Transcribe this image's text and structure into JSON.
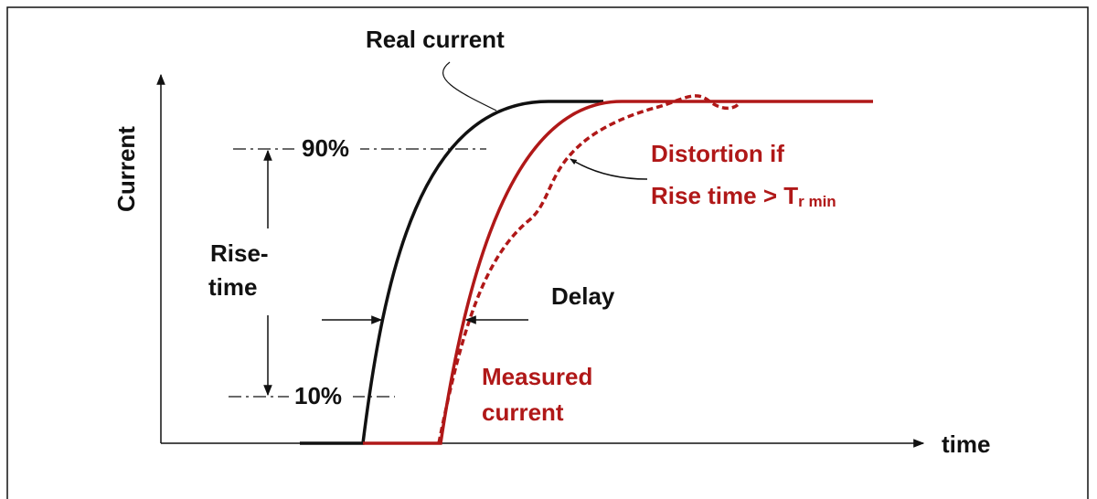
{
  "axes": {
    "y_label": "Current",
    "x_label": "time"
  },
  "levels": {
    "high": "90%",
    "low": "10%"
  },
  "rise_time": {
    "line1": "Rise-",
    "line2": "time"
  },
  "delay": "Delay",
  "real_current": "Real current",
  "measured_current": {
    "line1": "Measured",
    "line2": "current"
  },
  "distortion": {
    "line1": "Distortion if",
    "line2": "Rise time > T",
    "subscript": "r min"
  }
}
